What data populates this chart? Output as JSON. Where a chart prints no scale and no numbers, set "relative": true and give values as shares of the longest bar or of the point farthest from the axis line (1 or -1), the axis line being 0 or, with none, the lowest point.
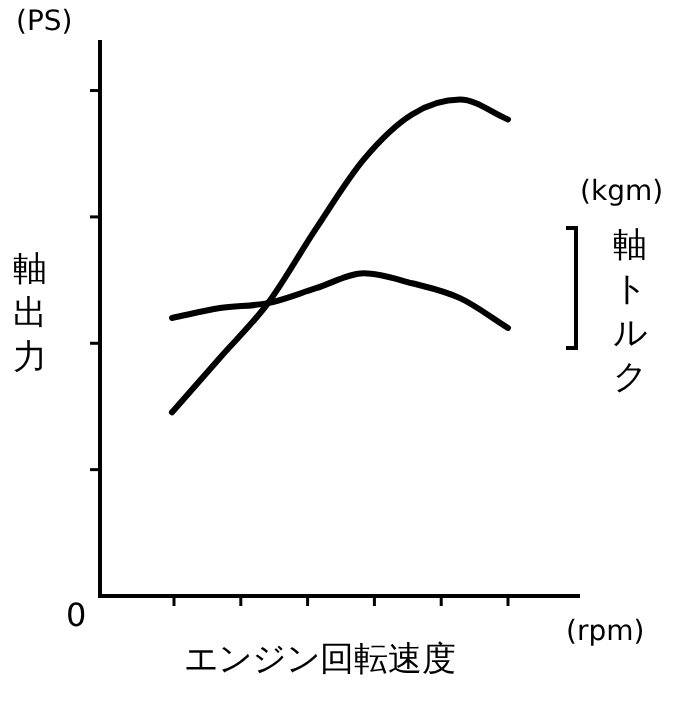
{
  "chart_data": {
    "type": "line",
    "relative": true,
    "xlabel": "エンジン回転速度",
    "ylabel": "軸出力",
    "y2label": "軸トルク",
    "annotations": [
      "(PS)",
      "(kgm)",
      "0",
      "(rpm)"
    ],
    "categories": [
      null,
      null,
      null,
      null,
      null,
      null,
      null,
      null,
      null,
      null
    ],
    "series": [
      {
        "color": "#000000",
        "values": [
          null,
          0.37,
          0.48,
          0.59,
          0.74,
          0.88,
          0.97,
          1,
          0.96,
          null
        ]
      },
      {
        "color": "#000000",
        "values": [
          null,
          0.56,
          0.58,
          0.59,
          0.62,
          0.65,
          0.63,
          0.6,
          0.54,
          null
        ]
      }
    ],
    "marker": "none",
    "line_style": "solid",
    "legend": false
  }
}
